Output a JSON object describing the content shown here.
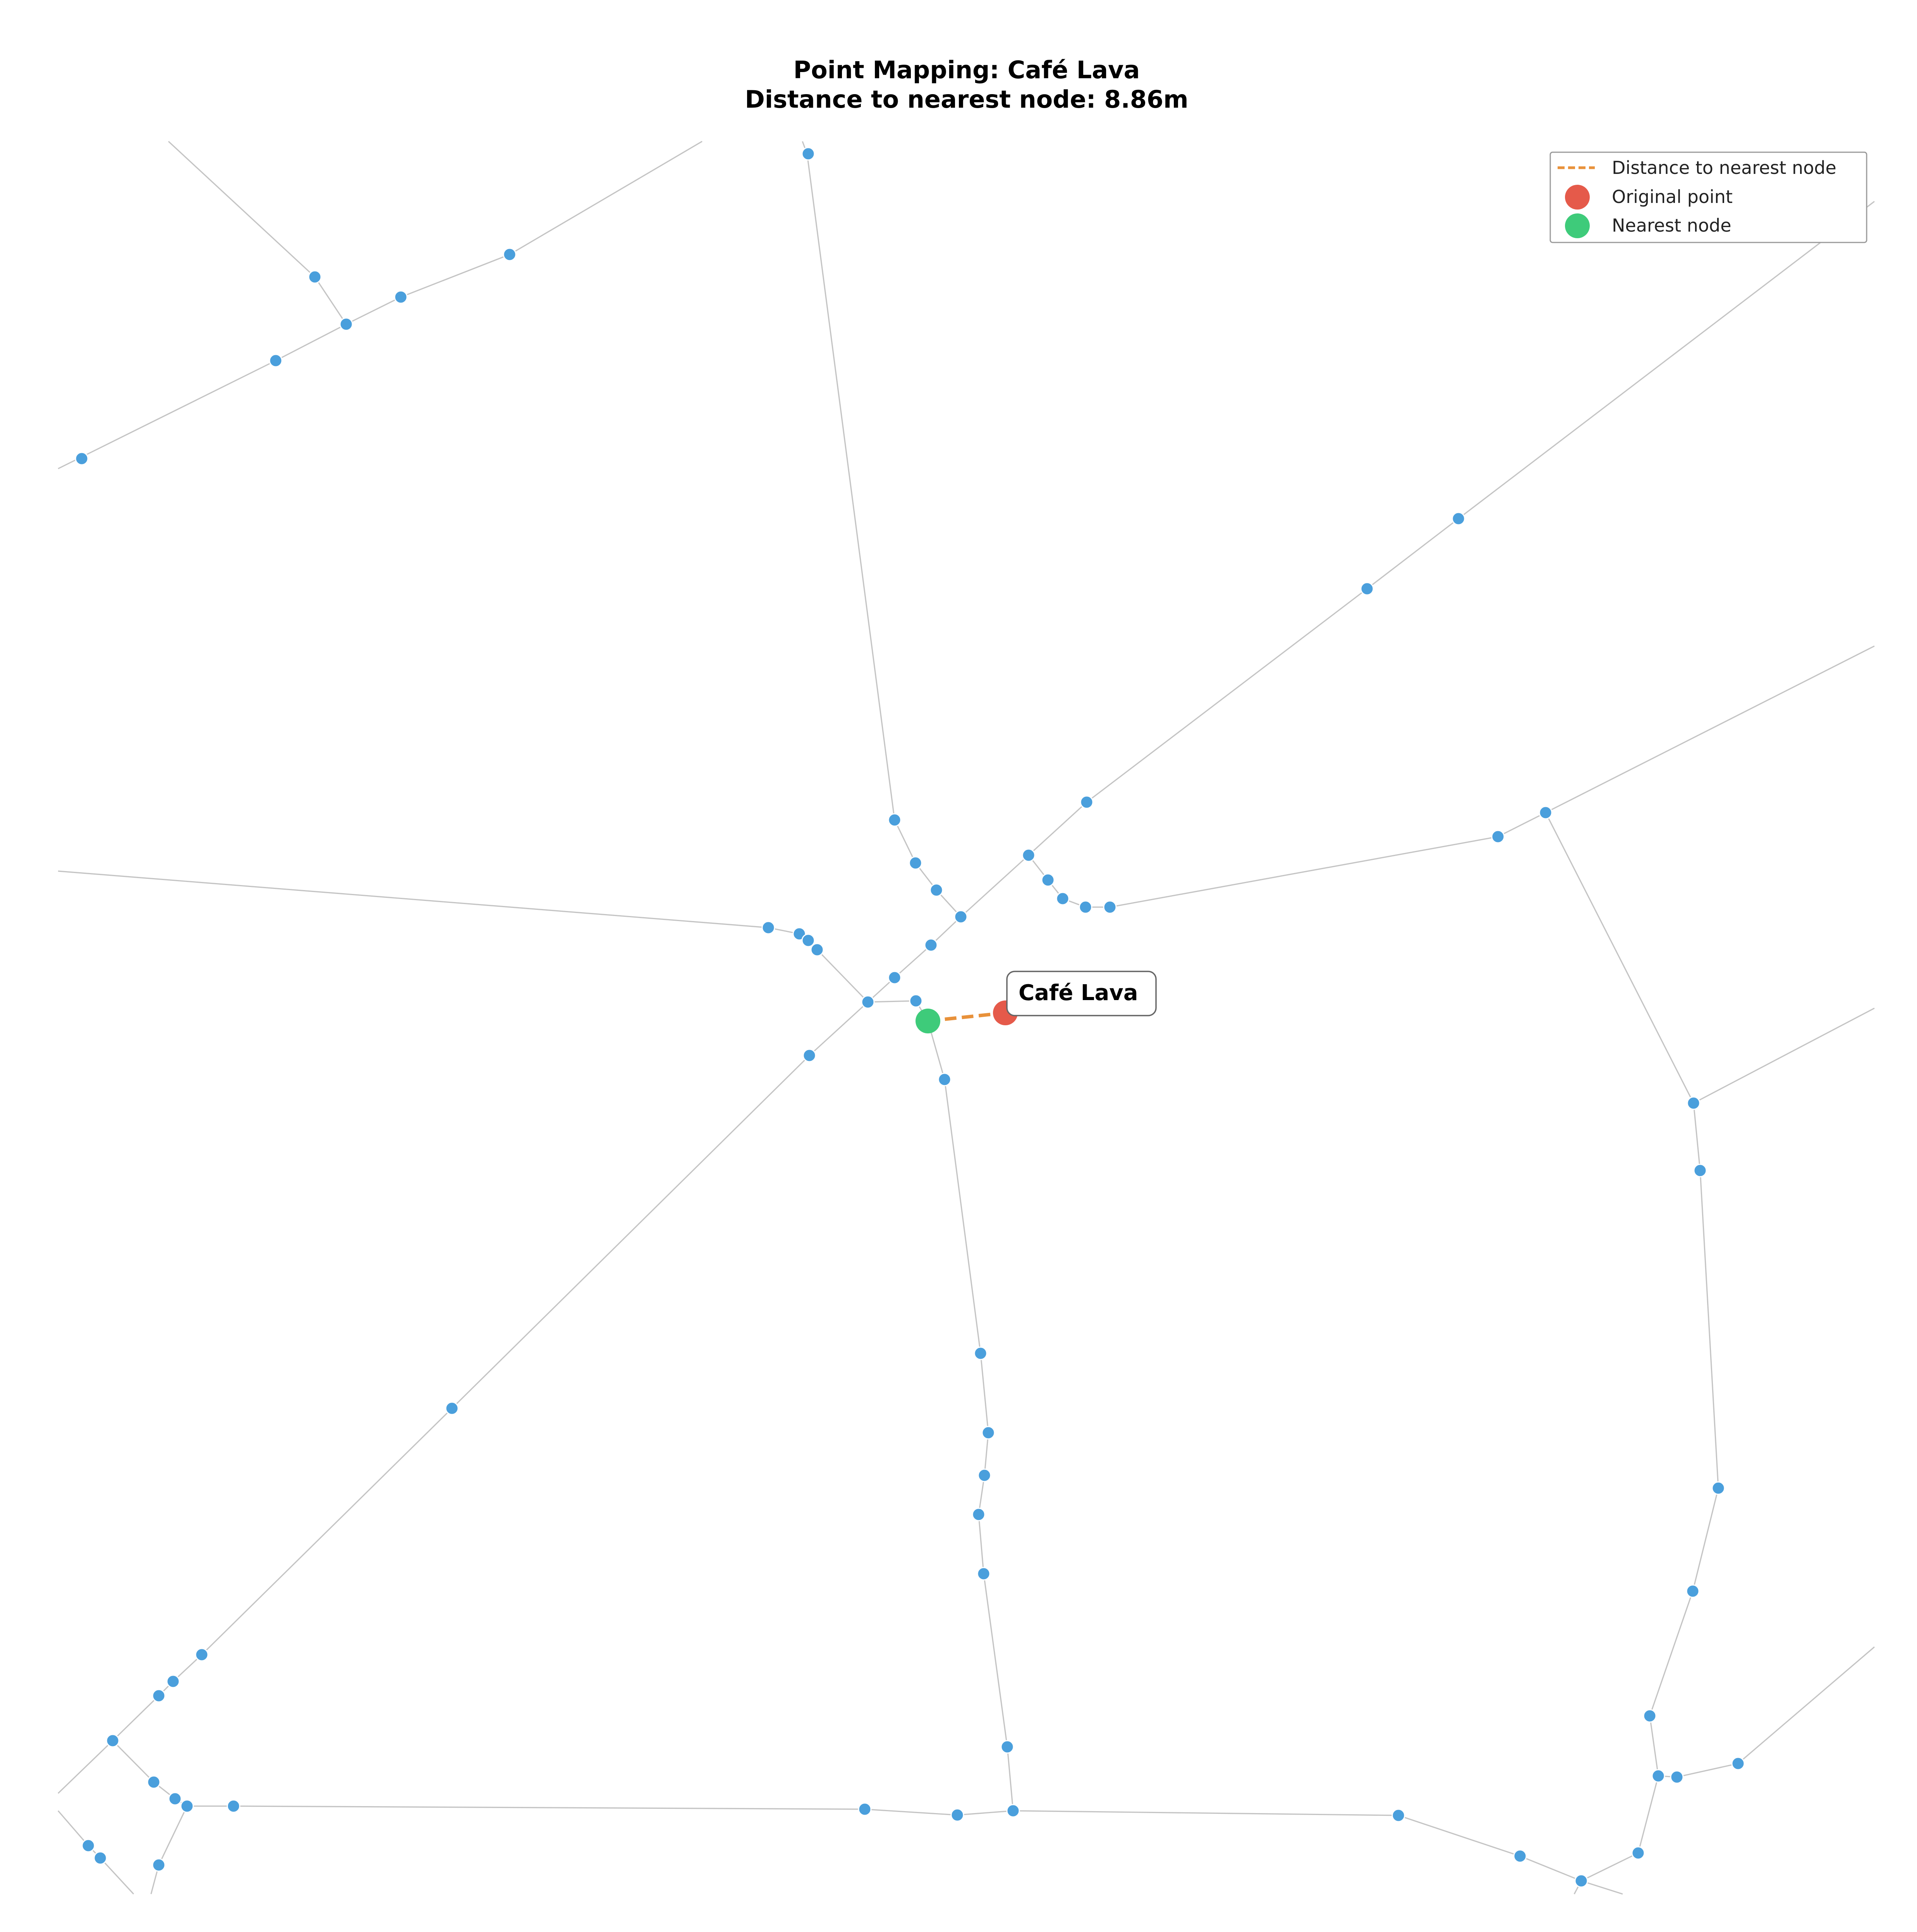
{
  "title": {
    "line1": "Point Mapping: Café Lava",
    "line2": "Distance to nearest node: 8.86m"
  },
  "legend": {
    "items": [
      {
        "label": "Distance to nearest node",
        "color": "#e8913a",
        "symbol": "dashed-line"
      },
      {
        "label": "Original point",
        "color": "#e55a4a",
        "symbol": "circle"
      },
      {
        "label": "Nearest node",
        "color": "#3ecb7a",
        "symbol": "circle"
      }
    ]
  },
  "poi": {
    "name": "Café Lava",
    "distance_m": 8.86
  },
  "colors": {
    "node": "#4a9fdc",
    "edge": "#c4c4c4",
    "original_point": "#e55a4a",
    "nearest_node": "#3ecb7a",
    "distance_line": "#e8913a"
  }
}
